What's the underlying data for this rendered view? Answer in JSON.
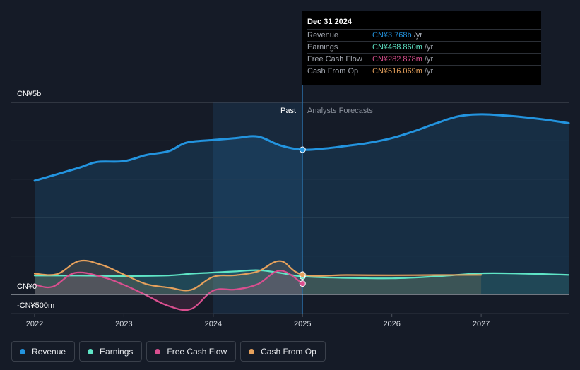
{
  "chart_data": {
    "type": "line",
    "y_unit_labels": {
      "top": "CN¥5b",
      "zero": "CN¥0",
      "bottom": "-CN¥500m"
    },
    "ylim": [
      -500,
      5000
    ],
    "xlim": [
      2022,
      2027.98
    ],
    "x_ticks": [
      "2022",
      "2023",
      "2024",
      "2025",
      "2026",
      "2027"
    ],
    "x_tick_values": [
      2022,
      2023,
      2024,
      2025,
      2026,
      2027
    ],
    "past_label": "Past",
    "forecast_label": "Analysts Forecasts",
    "past_end": 2025,
    "past_highlight_start": 2024,
    "series": [
      {
        "name": "Revenue",
        "color": "#2394df",
        "filled": true,
        "points": [
          [
            2022,
            2960
          ],
          [
            2022.5,
            3300
          ],
          [
            2022.7,
            3450
          ],
          [
            2023,
            3470
          ],
          [
            2023.25,
            3630
          ],
          [
            2023.5,
            3730
          ],
          [
            2023.7,
            3950
          ],
          [
            2024,
            4020
          ],
          [
            2024.25,
            4070
          ],
          [
            2024.5,
            4110
          ],
          [
            2024.75,
            3880
          ],
          [
            2025,
            3768
          ],
          [
            2025.25,
            3800
          ],
          [
            2025.5,
            3870
          ],
          [
            2025.75,
            3950
          ],
          [
            2026,
            4070
          ],
          [
            2026.25,
            4250
          ],
          [
            2026.5,
            4460
          ],
          [
            2026.75,
            4640
          ],
          [
            2027,
            4690
          ],
          [
            2027.25,
            4660
          ],
          [
            2027.5,
            4610
          ],
          [
            2027.75,
            4540
          ],
          [
            2027.98,
            4460
          ]
        ]
      },
      {
        "name": "Earnings",
        "color": "#5fe5c6",
        "filled": true,
        "points": [
          [
            2022,
            490
          ],
          [
            2022.5,
            490
          ],
          [
            2023,
            480
          ],
          [
            2023.5,
            495
          ],
          [
            2023.75,
            540
          ],
          [
            2024,
            570
          ],
          [
            2024.25,
            600
          ],
          [
            2024.5,
            630
          ],
          [
            2024.75,
            560
          ],
          [
            2025,
            468.86
          ],
          [
            2025.5,
            430
          ],
          [
            2026,
            420
          ],
          [
            2026.5,
            470
          ],
          [
            2027,
            550
          ],
          [
            2027.5,
            540
          ],
          [
            2027.98,
            510
          ]
        ]
      },
      {
        "name": "Free Cash Flow",
        "color": "#d94f8f",
        "filled": true,
        "points": [
          [
            2022,
            260
          ],
          [
            2022.2,
            200
          ],
          [
            2022.45,
            560
          ],
          [
            2022.75,
            460
          ],
          [
            2023,
            250
          ],
          [
            2023.25,
            -20
          ],
          [
            2023.5,
            -300
          ],
          [
            2023.75,
            -380
          ],
          [
            2024,
            100
          ],
          [
            2024.25,
            130
          ],
          [
            2024.5,
            270
          ],
          [
            2024.75,
            620
          ],
          [
            2025,
            282.878
          ]
        ]
      },
      {
        "name": "Cash From Op",
        "color": "#e6a15c",
        "filled": true,
        "points": [
          [
            2022,
            540
          ],
          [
            2022.25,
            530
          ],
          [
            2022.5,
            870
          ],
          [
            2022.75,
            770
          ],
          [
            2023,
            520
          ],
          [
            2023.25,
            270
          ],
          [
            2023.5,
            180
          ],
          [
            2023.75,
            120
          ],
          [
            2024,
            460
          ],
          [
            2024.25,
            500
          ],
          [
            2024.5,
            600
          ],
          [
            2024.75,
            870
          ],
          [
            2025,
            516.069
          ],
          [
            2025.5,
            505
          ],
          [
            2026,
            500
          ],
          [
            2026.5,
            505
          ],
          [
            2027,
            510
          ]
        ]
      }
    ],
    "tooltip": {
      "date": "Dec 31 2024",
      "unit": "/yr",
      "rows": [
        {
          "label": "Revenue",
          "value": "CN¥3.768b",
          "color": "#2394df"
        },
        {
          "label": "Earnings",
          "value": "CN¥468.860m",
          "color": "#5fe5c6"
        },
        {
          "label": "Free Cash Flow",
          "value": "CN¥282.878m",
          "color": "#d94f8f"
        },
        {
          "label": "Cash From Op",
          "value": "CN¥516.069m",
          "color": "#e6a15c"
        }
      ]
    },
    "legend": [
      {
        "label": "Revenue",
        "color": "#2394df"
      },
      {
        "label": "Earnings",
        "color": "#5fe5c6"
      },
      {
        "label": "Free Cash Flow",
        "color": "#d94f8f"
      },
      {
        "label": "Cash From Op",
        "color": "#e6a15c"
      }
    ]
  }
}
